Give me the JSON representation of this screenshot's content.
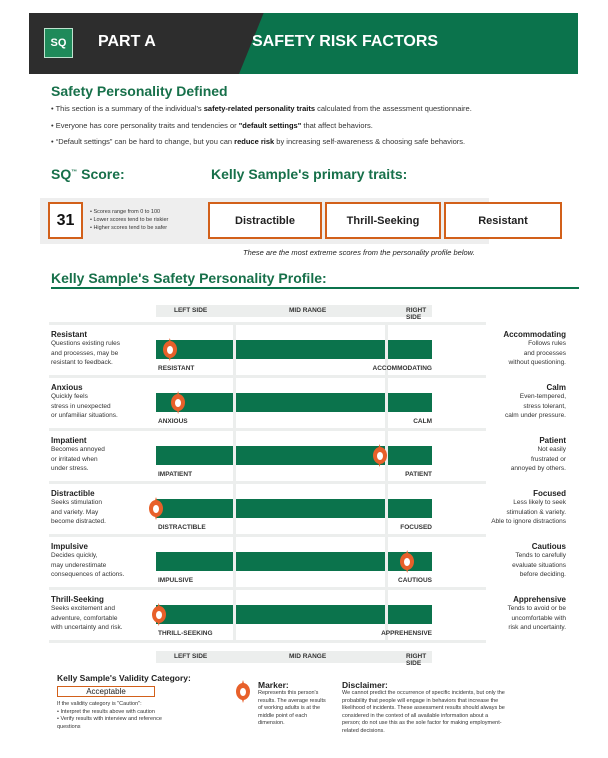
{
  "header": {
    "logo": "SQ",
    "part": "PART A",
    "title": "SAFETY RISK FACTORS"
  },
  "defined": {
    "title": "Safety Personality Defined",
    "bullets": [
      {
        "pre": "• This section is a summary of the individual's ",
        "bold": "safety-related personality traits",
        "post": " calculated from the assessment questionnaire."
      },
      {
        "pre": "• Everyone has core personality traits and tendencies or ",
        "bold": "\"default settings\"",
        "post": " that affect behaviors."
      },
      {
        "pre": "• “Default settings” can be hard to change, but you can ",
        "bold": "reduce risk",
        "post": " by increasing self-awareness & choosing safe behaviors."
      }
    ]
  },
  "score": {
    "label": "SQ",
    "tm": "™",
    "label_suffix": " Score:",
    "value": "31",
    "notes": [
      "• Scores range from 0 to 100",
      "• Lower scores tend to be riskier",
      "• Higher scores tend to be safer"
    ]
  },
  "primary": {
    "title": "Kelly Sample's primary traits:",
    "traits": [
      "Distractible",
      "Thrill-Seeking",
      "Resistant"
    ],
    "note": "These are the most extreme scores from the personality profile below."
  },
  "profile": {
    "title": "Kelly Sample's Safety Personality Profile:",
    "columns": [
      "LEFT SIDE",
      "MID RANGE",
      "RIGHT SIDE"
    ],
    "rows": [
      {
        "left": "Resistant",
        "left_desc": [
          "Questions existing rules",
          "and processes, may be",
          "resistant to feedback."
        ],
        "right": "Accommodating",
        "right_desc": [
          "Follows rules",
          "and processes",
          "without questioning."
        ],
        "left_label": "RESISTANT",
        "right_label": "ACCOMMODATING",
        "marker_pct": 5
      },
      {
        "left": "Anxious",
        "left_desc": [
          "Quickly feels",
          "stress in unexpected",
          "or unfamiliar situations."
        ],
        "right": "Calm",
        "right_desc": [
          "Even-tempered,",
          "stress tolerant,",
          "calm under pressure."
        ],
        "left_label": "ANXIOUS",
        "right_label": "CALM",
        "marker_pct": 8
      },
      {
        "left": "Impatient",
        "left_desc": [
          "Becomes annoyed",
          "or irritated when",
          "under stress."
        ],
        "right": "Patient",
        "right_desc": [
          "Not easily",
          "frustrated or",
          "annoyed by others."
        ],
        "left_label": "IMPATIENT",
        "right_label": "PATIENT",
        "marker_pct": 81
      },
      {
        "left": "Distractible",
        "left_desc": [
          "Seeks stimulation",
          "and variety. May",
          "become distracted."
        ],
        "right": "Focused",
        "right_desc": [
          "Less likely to seek",
          "stimulation & variety.",
          "Able to ignore distractions"
        ],
        "left_label": "DISTRACTIBLE",
        "right_label": "FOCUSED",
        "marker_pct": 0
      },
      {
        "left": "Impulsive",
        "left_desc": [
          "Decides quickly,",
          "may underestimate",
          "consequences of actions."
        ],
        "right": "Cautious",
        "right_desc": [
          "Tends to carefully",
          "evaluate situations",
          "before deciding."
        ],
        "left_label": "IMPULSIVE",
        "right_label": "CAUTIOUS",
        "marker_pct": 91
      },
      {
        "left": "Thrill-Seeking",
        "left_desc": [
          "Seeks excitement and",
          "adventure, comfortable",
          "with uncertainty and risk."
        ],
        "right": "Apprehensive",
        "right_desc": [
          "Tends to avoid or be",
          "uncomfortable with",
          "risk and uncertainty."
        ],
        "left_label": "THRILL-SEEKING",
        "right_label": "APPREHENSIVE",
        "marker_pct": 1
      }
    ]
  },
  "validity": {
    "title": "Kelly Sample's Validity Category:",
    "value": "Acceptable",
    "notes": [
      "If the validity category is \"Caution\":",
      "• Interpret the results above with caution",
      "• Verify results with interview and reference",
      "questions"
    ]
  },
  "marker": {
    "title": "Marker:",
    "text": [
      "Represents this person's",
      "results. The average results",
      "of working adults is at the",
      "middle point of each",
      "dimension."
    ]
  },
  "disclaimer": {
    "title": "Disclaimer:",
    "text": [
      "We cannot predict the occurrence of specific incidents, but only the",
      "probability that people will engage in behaviors that increase the",
      "likelihood of incidents. These assessment results should always be",
      "considered in the context of all available information about a",
      "person; do not use this as the sole factor for making employment-",
      "related decisions."
    ]
  },
  "colors": {
    "green": "#0b734c",
    "orange": "#d2601a",
    "marker": "#e8602a"
  }
}
